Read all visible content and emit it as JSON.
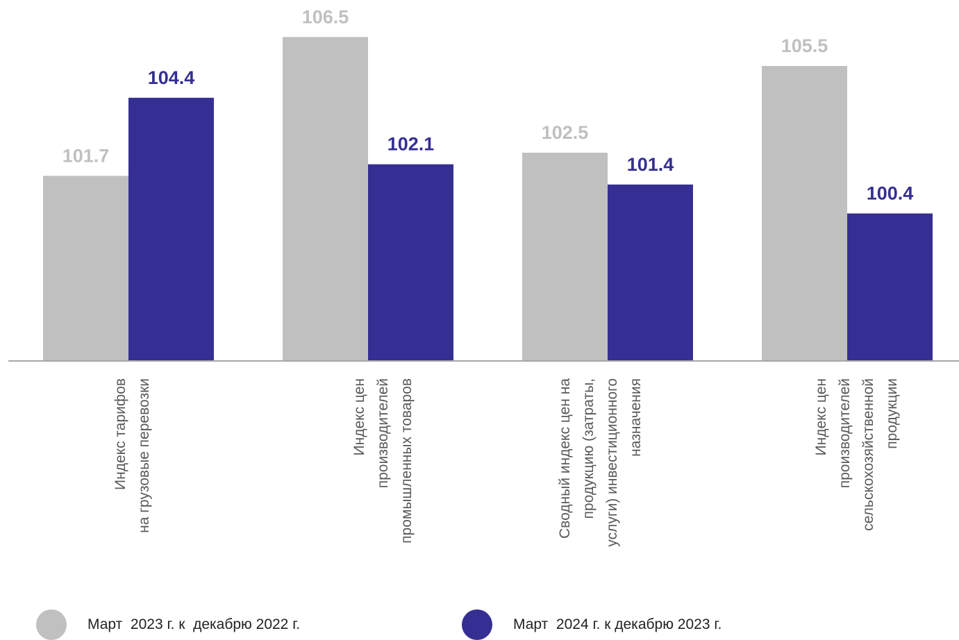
{
  "chart_data": {
    "type": "bar",
    "categories": [
      [
        "Индекс тарифов",
        "на грузовые перевозки"
      ],
      [
        "Индекс  цен",
        "производителей",
        "промышленных товаров"
      ],
      [
        "Сводный индекс  цен на",
        "продукцию  (затраты,",
        "услуги) инвестиционного",
        "назначения"
      ],
      [
        "Индекс цен",
        "производителей",
        "сельскохозяйственной",
        "продукции"
      ]
    ],
    "series": [
      {
        "name": "Март  2023 г. к  декабрю 2022 г.",
        "color": "#c0c0c0",
        "values": [
          101.7,
          106.5,
          102.5,
          105.5
        ]
      },
      {
        "name": "Март  2024 г. к декабрю 2023 г.",
        "color": "#352f93",
        "values": [
          104.4,
          102.1,
          101.4,
          100.4
        ]
      }
    ],
    "ylim": [
      95.3,
      107.3
    ],
    "grid": false,
    "legend_position": "bottom"
  }
}
